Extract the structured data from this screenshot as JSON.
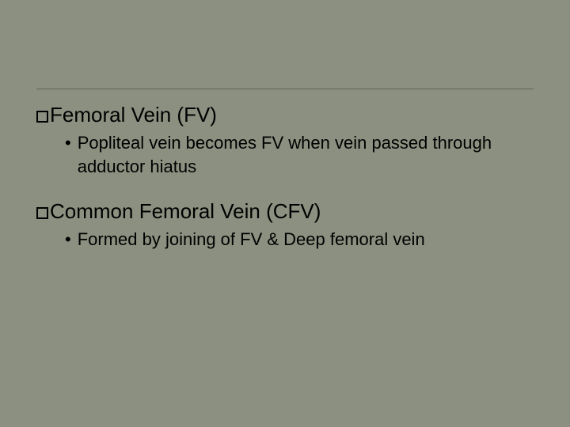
{
  "slide": {
    "background_color": "#8b9080",
    "divider_color": "#5f6357",
    "text_color": "#000000",
    "heading_fontsize": 26,
    "sub_fontsize": 22,
    "sections": [
      {
        "heading": "Femoral Vein (FV)",
        "sub": "Popliteal vein becomes FV when vein passed through adductor hiatus"
      },
      {
        "heading": "Common Femoral Vein (CFV)",
        "sub": "Formed by joining of FV & Deep femoral vein"
      }
    ]
  }
}
